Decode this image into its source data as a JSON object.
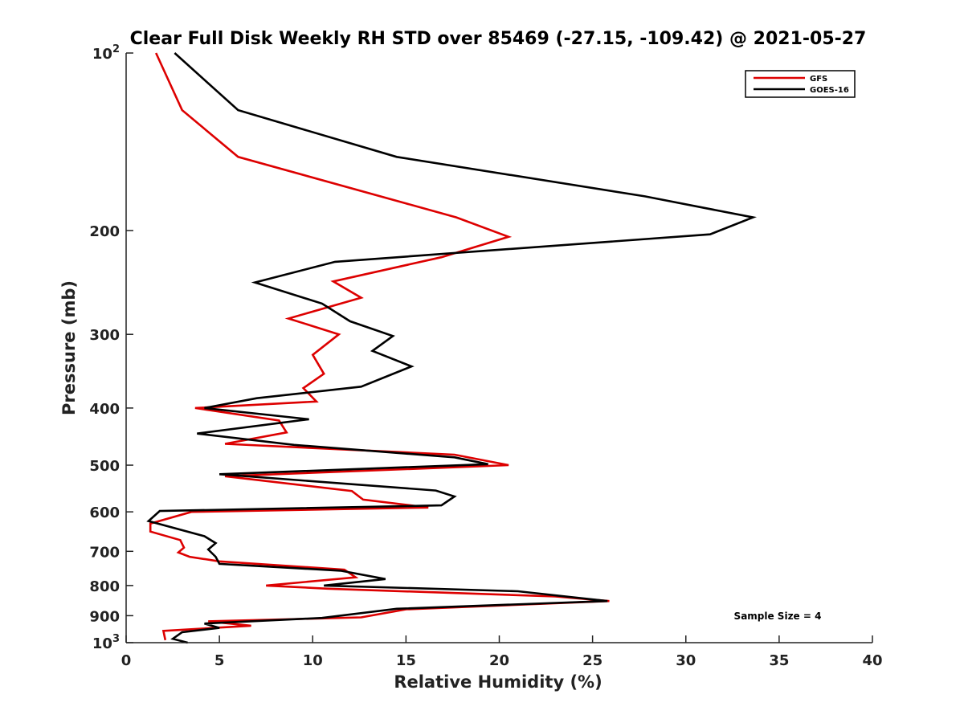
{
  "chart_data": {
    "type": "line",
    "title": "Clear Full Disk Weekly RH STD over 85469 (-27.15, -109.42) @ 2021-05-27",
    "xlabel": "Relative Humidity (%)",
    "ylabel": "Pressure (mb)",
    "xlim": [
      0,
      40
    ],
    "ylim": [
      100,
      1000
    ],
    "y_scale": "log",
    "y_reversed": true,
    "grid": false,
    "legend_position": "top-right",
    "x_ticks": [
      0,
      5,
      10,
      15,
      20,
      25,
      30,
      35,
      40
    ],
    "x_tick_labels": [
      "0",
      "5",
      "10",
      "15",
      "20",
      "25",
      "30",
      "35",
      "40"
    ],
    "y_ticks": [
      100,
      200,
      300,
      400,
      500,
      600,
      700,
      800,
      900,
      1000
    ],
    "y_tick_labels": [
      "10^2",
      "200",
      "300",
      "400",
      "500",
      "600",
      "700",
      "800",
      "900",
      "10^3"
    ],
    "annotation": "Sample Size = 4",
    "series": [
      {
        "name": "GFS",
        "color": "#dd0000",
        "points": [
          [
            1.6,
            100
          ],
          [
            3.0,
            125
          ],
          [
            6.0,
            150
          ],
          [
            17.7,
            190
          ],
          [
            20.5,
            205
          ],
          [
            16.9,
            222
          ],
          [
            11.1,
            244
          ],
          [
            12.6,
            260
          ],
          [
            8.7,
            282
          ],
          [
            11.4,
            300
          ],
          [
            10.0,
            325
          ],
          [
            10.6,
            350
          ],
          [
            9.5,
            370
          ],
          [
            10.2,
            390
          ],
          [
            3.7,
            400
          ],
          [
            8.2,
            420
          ],
          [
            8.6,
            440
          ],
          [
            5.3,
            460
          ],
          [
            17.6,
            480
          ],
          [
            20.5,
            500
          ],
          [
            5.3,
            522
          ],
          [
            12.1,
            553
          ],
          [
            12.7,
            572
          ],
          [
            16.2,
            590
          ],
          [
            3.5,
            600
          ],
          [
            1.3,
            628
          ],
          [
            1.3,
            648
          ],
          [
            2.9,
            670
          ],
          [
            3.1,
            690
          ],
          [
            2.8,
            703
          ],
          [
            3.4,
            715
          ],
          [
            5.0,
            728
          ],
          [
            11.7,
            752
          ],
          [
            12.3,
            775
          ],
          [
            7.5,
            800
          ],
          [
            10.8,
            810
          ],
          [
            23.0,
            835
          ],
          [
            25.9,
            850
          ],
          [
            15.0,
            878
          ],
          [
            12.6,
            906
          ],
          [
            4.4,
            920
          ],
          [
            6.7,
            936
          ],
          [
            2.0,
            955
          ],
          [
            2.1,
            990
          ]
        ]
      },
      {
        "name": "GOES-16",
        "color": "#000000",
        "points": [
          [
            2.6,
            100
          ],
          [
            6.0,
            125
          ],
          [
            14.5,
            150
          ],
          [
            27.8,
            175
          ],
          [
            33.6,
            190
          ],
          [
            31.3,
            203
          ],
          [
            11.2,
            226
          ],
          [
            6.9,
            245
          ],
          [
            10.5,
            266
          ],
          [
            12.0,
            285
          ],
          [
            14.3,
            302
          ],
          [
            13.2,
            320
          ],
          [
            15.3,
            340
          ],
          [
            12.6,
            368
          ],
          [
            7.0,
            385
          ],
          [
            4.2,
            400
          ],
          [
            9.8,
            418
          ],
          [
            3.8,
            442
          ],
          [
            9.0,
            462
          ],
          [
            17.6,
            485
          ],
          [
            19.4,
            498
          ],
          [
            5.0,
            518
          ],
          [
            16.6,
            552
          ],
          [
            17.6,
            565
          ],
          [
            16.9,
            585
          ],
          [
            1.8,
            598
          ],
          [
            1.2,
            622
          ],
          [
            4.2,
            660
          ],
          [
            4.8,
            678
          ],
          [
            4.4,
            695
          ],
          [
            4.8,
            715
          ],
          [
            5.0,
            735
          ],
          [
            11.5,
            755
          ],
          [
            13.9,
            780
          ],
          [
            10.6,
            800
          ],
          [
            21.0,
            818
          ],
          [
            25.8,
            850
          ],
          [
            14.5,
            876
          ],
          [
            10.5,
            908
          ],
          [
            4.2,
            928
          ],
          [
            5.0,
            944
          ],
          [
            3.0,
            960
          ],
          [
            2.5,
            985
          ],
          [
            3.3,
            1000
          ]
        ]
      }
    ]
  }
}
